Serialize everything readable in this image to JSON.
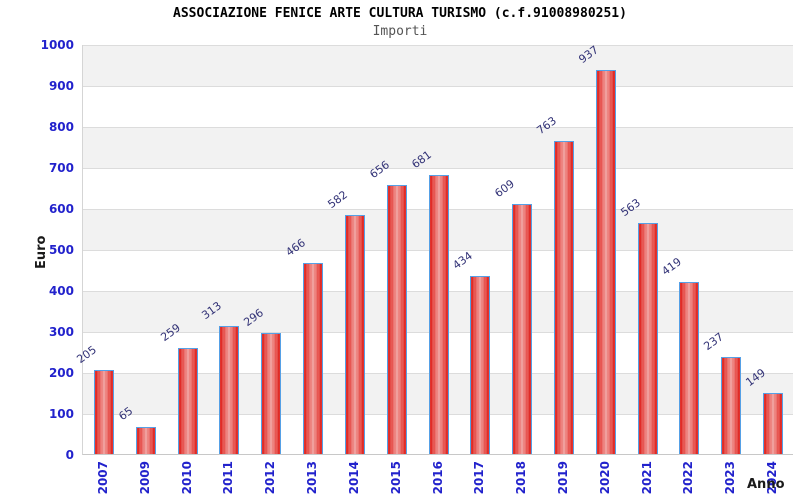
{
  "header": {
    "title": "ASSOCIAZIONE FENICE ARTE CULTURA TURISMO (c.f.91008980251)",
    "subtitle": "Importi"
  },
  "chart_data": {
    "type": "bar",
    "title": "ASSOCIAZIONE FENICE ARTE CULTURA TURISMO (c.f.91008980251)",
    "subtitle": "Importi",
    "xlabel": "Anno",
    "ylabel": "Euro",
    "categories": [
      "2007",
      "2009",
      "2010",
      "2011",
      "2012",
      "2013",
      "2014",
      "2015",
      "2016",
      "2017",
      "2018",
      "2019",
      "2020",
      "2021",
      "2022",
      "2023",
      "2024"
    ],
    "values": [
      205,
      65,
      259,
      313,
      296,
      466,
      582,
      656,
      681,
      434,
      609,
      763,
      937,
      563,
      419,
      237,
      149
    ],
    "ylim": [
      0,
      1000
    ],
    "ytick_step": 100,
    "yticks": [
      0,
      100,
      200,
      300,
      400,
      500,
      600,
      700,
      800,
      900,
      1000
    ],
    "grid": true,
    "legend": "none",
    "colors": {
      "bar_fill_edge": "#dd1712",
      "bar_fill_center": "#f09e9c",
      "bar_border": "#55a0e6",
      "axis_tick_text": "#2222cc",
      "value_label_text": "#333377",
      "band_gray": "#f2f2f2",
      "band_white": "#ffffff",
      "gridline": "#dcdcdc",
      "title_text": "#000000",
      "subtitle_text": "#555555"
    }
  }
}
